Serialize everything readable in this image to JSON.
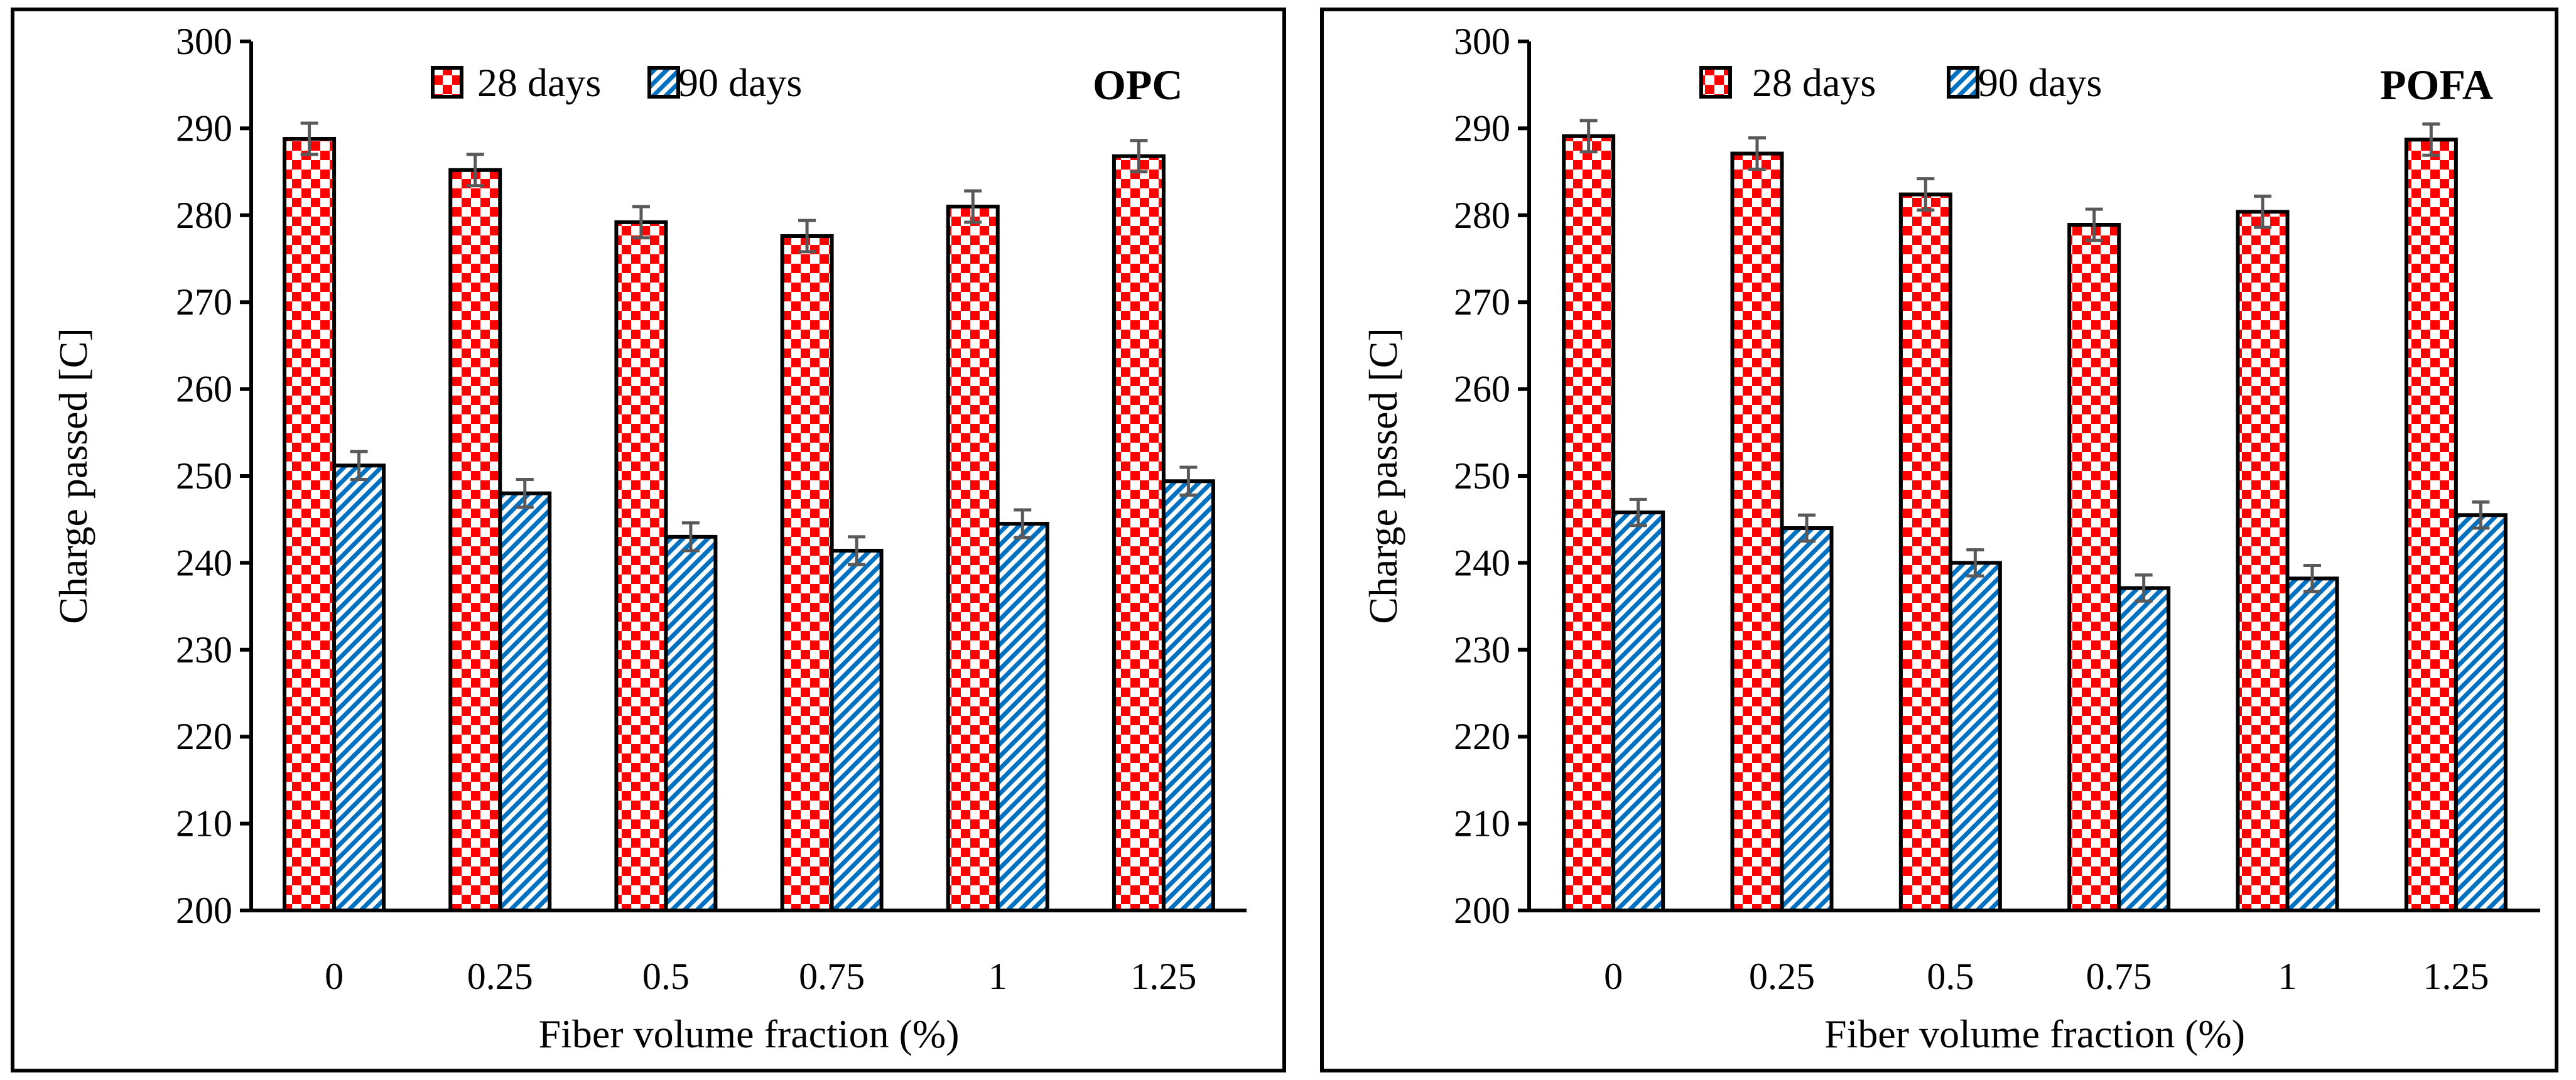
{
  "chart_data": [
    {
      "type": "bar",
      "title": "OPC",
      "xlabel": "Fiber volume fraction (%)",
      "ylabel": "Charge passed [C]",
      "ylim": [
        200,
        300
      ],
      "yticks": [
        200,
        210,
        220,
        230,
        240,
        250,
        260,
        270,
        280,
        290,
        300
      ],
      "categories": [
        "0",
        "0.25",
        "0.5",
        "0.75",
        "1",
        "1.25"
      ],
      "legend": "top-center",
      "grid": false,
      "series": [
        {
          "name": "28 days",
          "pattern": "checkerboard",
          "color": "#ff0000",
          "values": [
            288.8,
            285.2,
            279.2,
            277.6,
            281.0,
            286.8
          ],
          "error": [
            1.8,
            1.8,
            1.8,
            1.8,
            1.8,
            1.8
          ]
        },
        {
          "name": "90 days",
          "pattern": "diagonal-stripes",
          "color": "#0070c0",
          "values": [
            251.2,
            248.0,
            243.0,
            241.4,
            244.5,
            249.4
          ],
          "error": [
            1.6,
            1.6,
            1.6,
            1.6,
            1.6,
            1.6
          ]
        }
      ]
    },
    {
      "type": "bar",
      "title": "POFA",
      "xlabel": "Fiber volume fraction (%)",
      "ylabel": "Charge passed [C]",
      "ylim": [
        200,
        300
      ],
      "yticks": [
        200,
        210,
        220,
        230,
        240,
        250,
        260,
        270,
        280,
        290,
        300
      ],
      "categories": [
        "0",
        "0.25",
        "0.5",
        "0.75",
        "1",
        "1.25"
      ],
      "legend": "top-center",
      "grid": false,
      "series": [
        {
          "name": "28 days",
          "pattern": "checkerboard",
          "color": "#ff0000",
          "values": [
            289.1,
            287.1,
            282.4,
            278.9,
            280.4,
            288.7
          ],
          "error": [
            1.8,
            1.8,
            1.8,
            1.8,
            1.8,
            1.8
          ]
        },
        {
          "name": "90 days",
          "pattern": "diagonal-stripes",
          "color": "#0070c0",
          "values": [
            245.8,
            244.0,
            240.0,
            237.1,
            238.2,
            245.5
          ],
          "error": [
            1.5,
            1.5,
            1.5,
            1.5,
            1.5,
            1.5
          ]
        }
      ]
    }
  ]
}
